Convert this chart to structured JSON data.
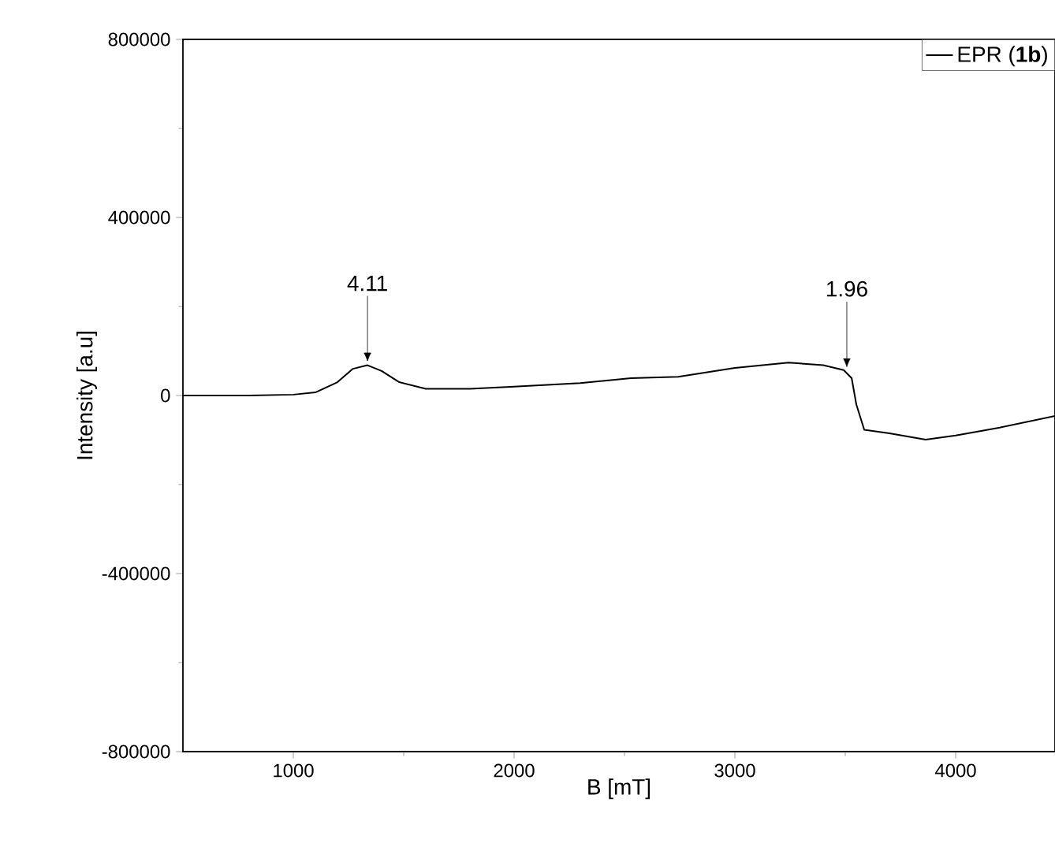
{
  "chart_data": {
    "type": "line",
    "xlabel": "B [mT]",
    "ylabel": "Intensity [a.u]",
    "xlim": [
      500,
      4450
    ],
    "xticks": [
      1000,
      2000,
      3000,
      4000
    ],
    "ylim": [
      -800000,
      800000
    ],
    "yticks": [
      -800000,
      -400000,
      0,
      400000,
      800000
    ],
    "series": [
      {
        "name": "EPR (**1b**)",
        "color": "#000000",
        "x": [
          500,
          800,
          1000,
          1100,
          1200,
          1270,
          1336,
          1400,
          1480,
          1600,
          1800,
          2000,
          2300,
          2529,
          2743,
          3000,
          3243,
          3400,
          3493,
          3529,
          3550,
          3586,
          3700,
          3864,
          4000,
          4200,
          4450
        ],
        "values": [
          0,
          0,
          2000,
          7000,
          30000,
          60000,
          68000,
          55000,
          30000,
          15000,
          15000,
          20000,
          28000,
          39000,
          42000,
          62000,
          74000,
          68000,
          57000,
          39000,
          -20000,
          -77000,
          -85000,
          -99000,
          -90000,
          -72000,
          -46000
        ]
      }
    ],
    "annotations": [
      {
        "text": "4.11",
        "x": 1336,
        "y": 68000
      },
      {
        "text": "1.96",
        "x": 3507,
        "y": 55000
      }
    ],
    "legend": "top right"
  }
}
